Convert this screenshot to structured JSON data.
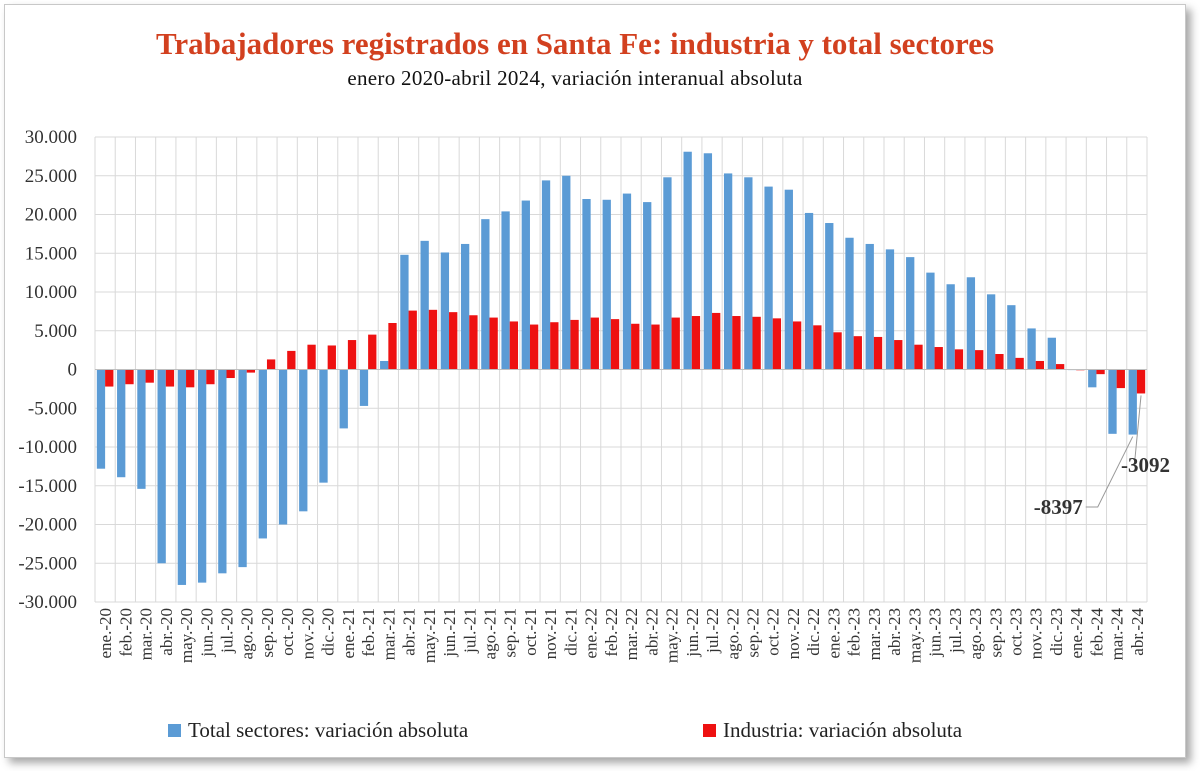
{
  "title": "Trabajadores registrados en Santa Fe: industria y total sectores",
  "subtitle": "enero 2020-abril 2024, variación interanual absoluta",
  "colors": {
    "total": "#5b9bd5",
    "industria": "#ee1111",
    "title": "#d2401f"
  },
  "chart_data": {
    "type": "bar",
    "title": "Trabajadores registrados en Santa Fe: industria y total sectores",
    "subtitle": "enero 2020-abril 2024, variación interanual absoluta",
    "xlabel": "",
    "ylabel": "",
    "ylim": [
      -30000,
      30000
    ],
    "yticks": [
      30000,
      25000,
      20000,
      15000,
      10000,
      5000,
      0,
      -5000,
      -10000,
      -15000,
      -20000,
      -25000,
      -30000
    ],
    "ytick_labels": [
      "30.000",
      "25.000",
      "20.000",
      "15.000",
      "10.000",
      "5.000",
      "0",
      "-5.000",
      "-10.000",
      "-15.000",
      "-20.000",
      "-25.000",
      "-30.000"
    ],
    "grid": true,
    "legend_position": "bottom",
    "categories": [
      "ene.-20",
      "feb.-20",
      "mar.-20",
      "abr.-20",
      "may.-20",
      "jun.-20",
      "jul.-20",
      "ago.-20",
      "sep.-20",
      "oct.-20",
      "nov.-20",
      "dic.-20",
      "ene.-21",
      "feb.-21",
      "mar.-21",
      "abr.-21",
      "may.-21",
      "jun.-21",
      "jul.-21",
      "ago.-21",
      "sep.-21",
      "oct.-21",
      "nov.-21",
      "dic.-21",
      "ene.-22",
      "feb.-22",
      "mar.-22",
      "abr.-22",
      "may.-22",
      "jun.-22",
      "jul.-22",
      "ago.-22",
      "sep.-22",
      "oct.-22",
      "nov.-22",
      "dic.-22",
      "ene.-23",
      "feb.-23",
      "mar.-23",
      "abr.-23",
      "may.-23",
      "jun.-23",
      "jul.-23",
      "ago.-23",
      "sep.-23",
      "oct.-23",
      "nov.-23",
      "dic.-23",
      "ene.-24",
      "feb.-24",
      "mar.-24",
      "abr.-24"
    ],
    "series": [
      {
        "name": "Total sectores: variación absoluta",
        "values": [
          -12800,
          -13900,
          -15400,
          -25000,
          -27800,
          -27500,
          -26300,
          -25500,
          -21800,
          -20000,
          -18300,
          -14600,
          -7600,
          -4700,
          1100,
          14800,
          16600,
          15100,
          16200,
          19400,
          20400,
          21800,
          24400,
          25000,
          22000,
          21900,
          22700,
          21600,
          24800,
          28100,
          27900,
          25300,
          24800,
          23600,
          23200,
          20200,
          18900,
          17000,
          16200,
          15500,
          14500,
          12500,
          11000,
          11900,
          9700,
          8300,
          5300,
          4100,
          0,
          -2300,
          -8300,
          -8397
        ]
      },
      {
        "name": "Industria: variación absoluta",
        "values": [
          -2200,
          -1900,
          -1700,
          -2200,
          -2300,
          -1900,
          -1100,
          -400,
          1300,
          2400,
          3200,
          3100,
          3800,
          4500,
          6000,
          7600,
          7700,
          7400,
          7000,
          6700,
          6200,
          5800,
          6100,
          6400,
          6700,
          6500,
          5900,
          5800,
          6700,
          6900,
          7300,
          6900,
          6800,
          6600,
          6200,
          5700,
          4800,
          4300,
          4200,
          3800,
          3200,
          2900,
          2600,
          2500,
          2000,
          1500,
          1100,
          700,
          -100,
          -600,
          -2400,
          -3092
        ]
      }
    ],
    "annotations": [
      {
        "label": "-8397",
        "category": "abr.-24",
        "series": "Total sectores: variación absoluta"
      },
      {
        "label": "-3092",
        "category": "abr.-24",
        "series": "Industria: variación absoluta"
      }
    ]
  },
  "legend": {
    "total_label": "Total sectores: variación absoluta",
    "industria_label": "Industria: variación absoluta"
  }
}
